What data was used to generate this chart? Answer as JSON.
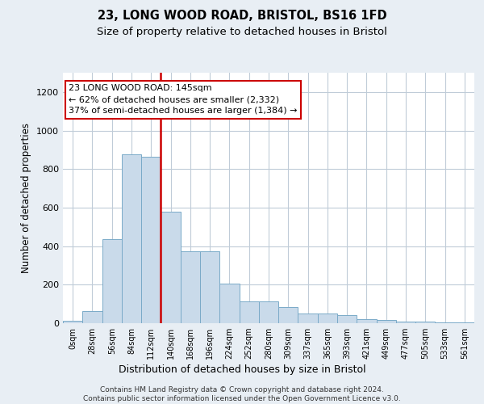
{
  "title1": "23, LONG WOOD ROAD, BRISTOL, BS16 1FD",
  "title2": "Size of property relative to detached houses in Bristol",
  "xlabel": "Distribution of detached houses by size in Bristol",
  "ylabel": "Number of detached properties",
  "bar_values": [
    12,
    65,
    435,
    875,
    865,
    580,
    375,
    375,
    205,
    115,
    115,
    85,
    50,
    50,
    40,
    20,
    15,
    10,
    8,
    5,
    3
  ],
  "bin_labels": [
    "0sqm",
    "28sqm",
    "56sqm",
    "84sqm",
    "112sqm",
    "140sqm",
    "168sqm",
    "196sqm",
    "224sqm",
    "252sqm",
    "280sqm",
    "309sqm",
    "337sqm",
    "365sqm",
    "393sqm",
    "421sqm",
    "449sqm",
    "477sqm",
    "505sqm",
    "533sqm",
    "561sqm"
  ],
  "bar_color": "#c9daea",
  "bar_edge_color": "#7aaac8",
  "vline_x_idx": 5,
  "vline_color": "#cc0000",
  "annotation_text": "23 LONG WOOD ROAD: 145sqm\n← 62% of detached houses are smaller (2,332)\n37% of semi-detached houses are larger (1,384) →",
  "annotation_box_color": "white",
  "annotation_box_edge_color": "#cc0000",
  "ylim": [
    0,
    1300
  ],
  "yticks": [
    0,
    200,
    400,
    600,
    800,
    1000,
    1200
  ],
  "footer_text": "Contains HM Land Registry data © Crown copyright and database right 2024.\nContains public sector information licensed under the Open Government Licence v3.0.",
  "bg_color": "#e8eef4",
  "plot_bg_color": "white",
  "grid_color": "#c0ccd8"
}
